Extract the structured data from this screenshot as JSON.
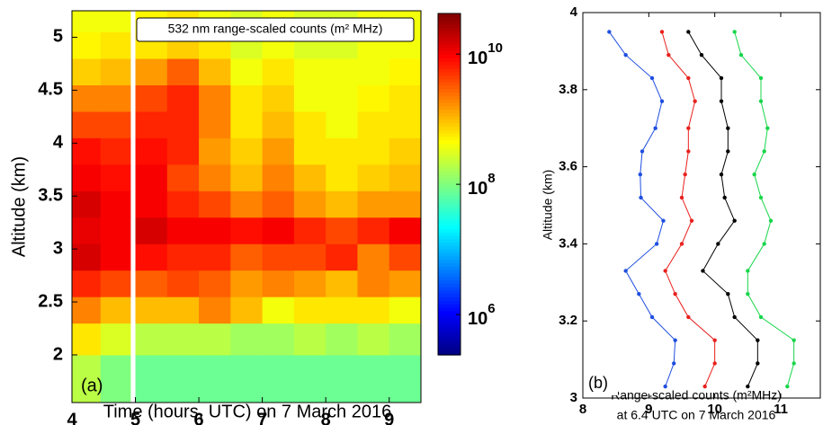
{
  "chart_data": [
    {
      "type": "heatmap",
      "panel_label": "(a)",
      "annotation": "532 nm range-scaled counts (m² MHz)",
      "xlabel": "Time (hours, UTC) on 7 March 2016",
      "ylabel": "Altitude (km)",
      "x_edges": [
        4,
        4.45,
        4.92,
        5.0,
        5.5,
        6,
        6.5,
        7,
        7.5,
        8,
        8.5,
        9,
        9.5
      ],
      "y_edges": [
        1.55,
        2.0,
        2.3,
        2.55,
        2.8,
        3.05,
        3.3,
        3.55,
        3.8,
        4.05,
        4.3,
        4.55,
        4.8,
        5.05,
        5.25
      ],
      "z": [
        [
          200000000.0,
          100000000.0,
          null,
          80000000.0,
          80000000.0,
          80000000.0,
          80000000.0,
          80000000.0,
          80000000.0,
          80000000.0,
          80000000.0,
          80000000.0
        ],
        [
          600000000.0,
          300000000.0,
          null,
          200000000.0,
          200000000.0,
          200000000.0,
          150000000.0,
          150000000.0,
          200000000.0,
          150000000.0,
          200000000.0,
          150000000.0
        ],
        [
          2000000000.0,
          1000000000.0,
          null,
          1000000000.0,
          1000000000.0,
          2000000000.0,
          1000000000.0,
          400000000.0,
          600000000.0,
          600000000.0,
          600000000.0,
          400000000.0
        ],
        [
          6000000000.0,
          4000000000.0,
          null,
          3000000000.0,
          4000000000.0,
          3000000000.0,
          1500000000.0,
          2000000000.0,
          1500000000.0,
          1000000000.0,
          2000000000.0,
          1500000000.0
        ],
        [
          15000000000.0,
          10000000000.0,
          null,
          8000000000.0,
          6000000000.0,
          6000000000.0,
          3000000000.0,
          4000000000.0,
          4000000000.0,
          6000000000.0,
          2000000000.0,
          4000000000.0
        ],
        [
          12000000000.0,
          10000000000.0,
          null,
          15000000000.0,
          10000000000.0,
          10000000000.0,
          8000000000.0,
          10000000000.0,
          6000000000.0,
          4000000000.0,
          6000000000.0,
          10000000000.0
        ],
        [
          15000000000.0,
          10000000000.0,
          null,
          10000000000.0,
          6000000000.0,
          4000000000.0,
          2000000000.0,
          3000000000.0,
          1500000000.0,
          1000000000.0,
          1500000000.0,
          1500000000.0
        ],
        [
          10000000000.0,
          8000000000.0,
          null,
          10000000000.0,
          4000000000.0,
          2000000000.0,
          1000000000.0,
          2000000000.0,
          1000000000.0,
          600000000.0,
          800000000.0,
          1000000000.0
        ],
        [
          8000000000.0,
          6000000000.0,
          null,
          8000000000.0,
          6000000000.0,
          1500000000.0,
          800000000.0,
          1500000000.0,
          600000000.0,
          600000000.0,
          600000000.0,
          800000000.0
        ],
        [
          4000000000.0,
          4000000000.0,
          null,
          6000000000.0,
          6000000000.0,
          2000000000.0,
          600000000.0,
          1000000000.0,
          600000000.0,
          400000000.0,
          600000000.0,
          600000000.0
        ],
        [
          2000000000.0,
          2000000000.0,
          null,
          4000000000.0,
          6000000000.0,
          2000000000.0,
          600000000.0,
          800000000.0,
          400000000.0,
          400000000.0,
          500000000.0,
          600000000.0
        ],
        [
          800000000.0,
          1000000000.0,
          null,
          1500000000.0,
          3000000000.0,
          1000000000.0,
          400000000.0,
          600000000.0,
          400000000.0,
          400000000.0,
          400000000.0,
          500000000.0
        ],
        [
          500000000.0,
          600000000.0,
          null,
          600000000.0,
          800000000.0,
          600000000.0,
          300000000.0,
          400000000.0,
          300000000.0,
          300000000.0,
          400000000.0,
          400000000.0
        ],
        [
          400000000.0,
          400000000.0,
          null,
          500000000.0,
          600000000.0,
          400000000.0,
          300000000.0,
          400000000.0,
          300000000.0,
          300000000.0,
          400000000.0,
          400000000.0
        ]
      ],
      "xlim": [
        4,
        9.5
      ],
      "ylim": [
        1.55,
        5.25
      ],
      "xticks": [
        4,
        5,
        6,
        7,
        8,
        9
      ],
      "yticks": [
        2,
        2.5,
        3,
        3.5,
        4,
        4.5,
        5
      ],
      "colormap": "jet",
      "color_log": true,
      "clim": [
        240000,
        42000000000
      ],
      "cticks": [
        {
          "value": 1000000,
          "label": "10",
          "exponent": "6"
        },
        {
          "value": 100000000,
          "label": "10",
          "exponent": "8"
        },
        {
          "value": 10000000000,
          "label": "10",
          "exponent": "10"
        }
      ]
    },
    {
      "type": "line",
      "panel_label": "(b)",
      "ylabel": "Altitude (km)",
      "xlabel": [
        "Range-scaled counts (m²MHz)",
        "at 6.4 UTC on 7 March 2016"
      ],
      "y": [
        3.03,
        3.09,
        3.15,
        3.21,
        3.27,
        3.33,
        3.4,
        3.46,
        3.52,
        3.58,
        3.64,
        3.7,
        3.77,
        3.83,
        3.89,
        3.95
      ],
      "series": [
        {
          "color": "#1f4fe0",
          "values": [
            9.25,
            9.38,
            9.4,
            9.05,
            8.85,
            8.65,
            9.12,
            9.22,
            8.88,
            8.87,
            8.9,
            9.1,
            9.2,
            9.05,
            8.65,
            8.4
          ]
        },
        {
          "color": "#e8201c",
          "values": [
            9.85,
            10.0,
            10.0,
            9.6,
            9.4,
            9.25,
            9.5,
            9.65,
            9.5,
            9.55,
            9.6,
            9.6,
            9.7,
            9.6,
            9.3,
            9.2
          ]
        },
        {
          "color": "#000000",
          "values": [
            10.5,
            10.65,
            10.65,
            10.3,
            10.2,
            9.82,
            10.05,
            10.3,
            10.15,
            10.1,
            10.2,
            10.2,
            10.1,
            10.1,
            9.8,
            9.6
          ]
        },
        {
          "color": "#18d64a",
          "values": [
            11.1,
            11.2,
            11.2,
            10.7,
            10.5,
            10.5,
            10.75,
            10.85,
            10.7,
            10.6,
            10.75,
            10.8,
            10.7,
            10.7,
            10.4,
            10.3
          ]
        }
      ],
      "xlim": [
        8,
        11.6
      ],
      "ylim": [
        3,
        4
      ],
      "xticks": [
        8,
        9,
        10,
        11
      ],
      "yticks": [
        3,
        3.2,
        3.4,
        3.6,
        3.8,
        4
      ]
    }
  ]
}
